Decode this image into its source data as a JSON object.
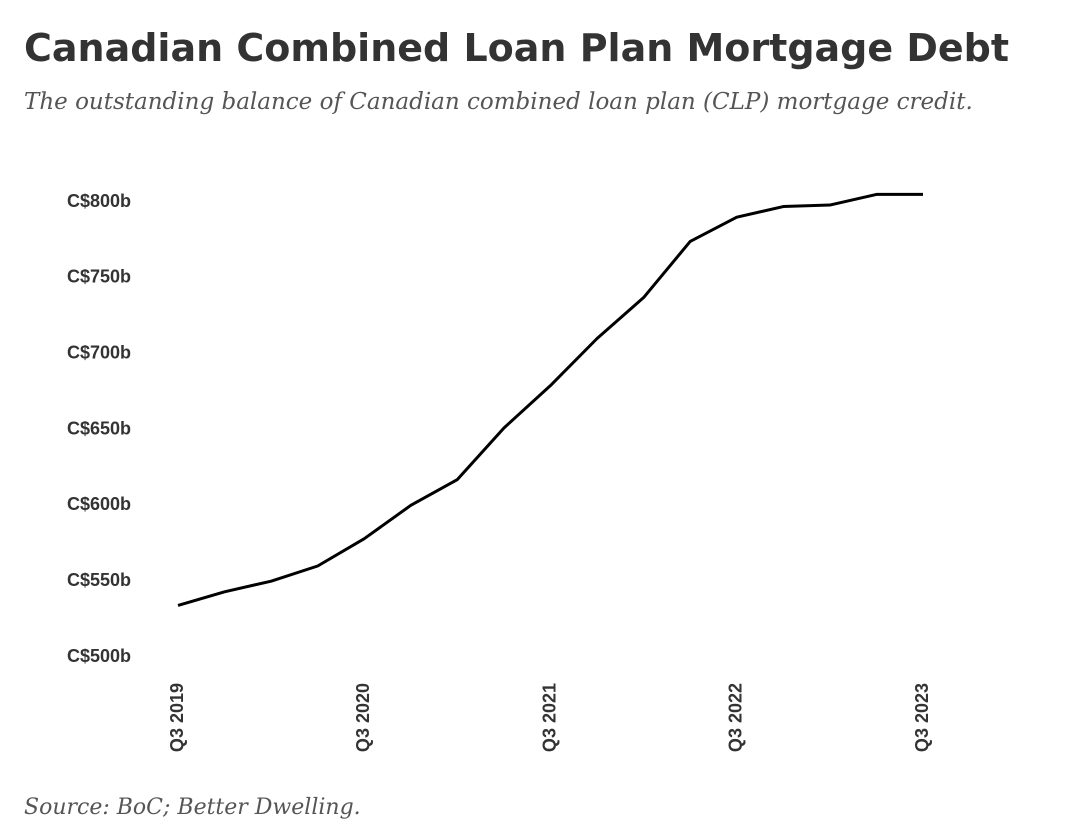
{
  "chart_data": {
    "type": "line",
    "title": "Canadian Combined Loan Plan Mortgage Debt",
    "subtitle": "The outstanding balance of Canadian combined loan plan (CLP) mortgage credit.",
    "source": "Source: BoC; Better Dwelling.",
    "categories": [
      "Q3 2019",
      null,
      null,
      null,
      "Q3 2020",
      null,
      null,
      null,
      "Q3 2021",
      null,
      null,
      null,
      "Q3 2022",
      null,
      null,
      null,
      "Q3 2023"
    ],
    "values": [
      534,
      543,
      550,
      560,
      578,
      600,
      617,
      651,
      679,
      710,
      737,
      774,
      790,
      797,
      798,
      805,
      805
    ],
    "color": "#000000",
    "ylim": [
      500,
      810
    ],
    "yticks": [
      {
        "value": 500,
        "label": "C$500b"
      },
      {
        "value": 550,
        "label": "C$550b"
      },
      {
        "value": 600,
        "label": "C$600b"
      },
      {
        "value": 650,
        "label": "C$650b"
      },
      {
        "value": 700,
        "label": "C$700b"
      },
      {
        "value": 750,
        "label": "C$750b"
      },
      {
        "value": 800,
        "label": "C$800b"
      }
    ],
    "grid": false
  }
}
